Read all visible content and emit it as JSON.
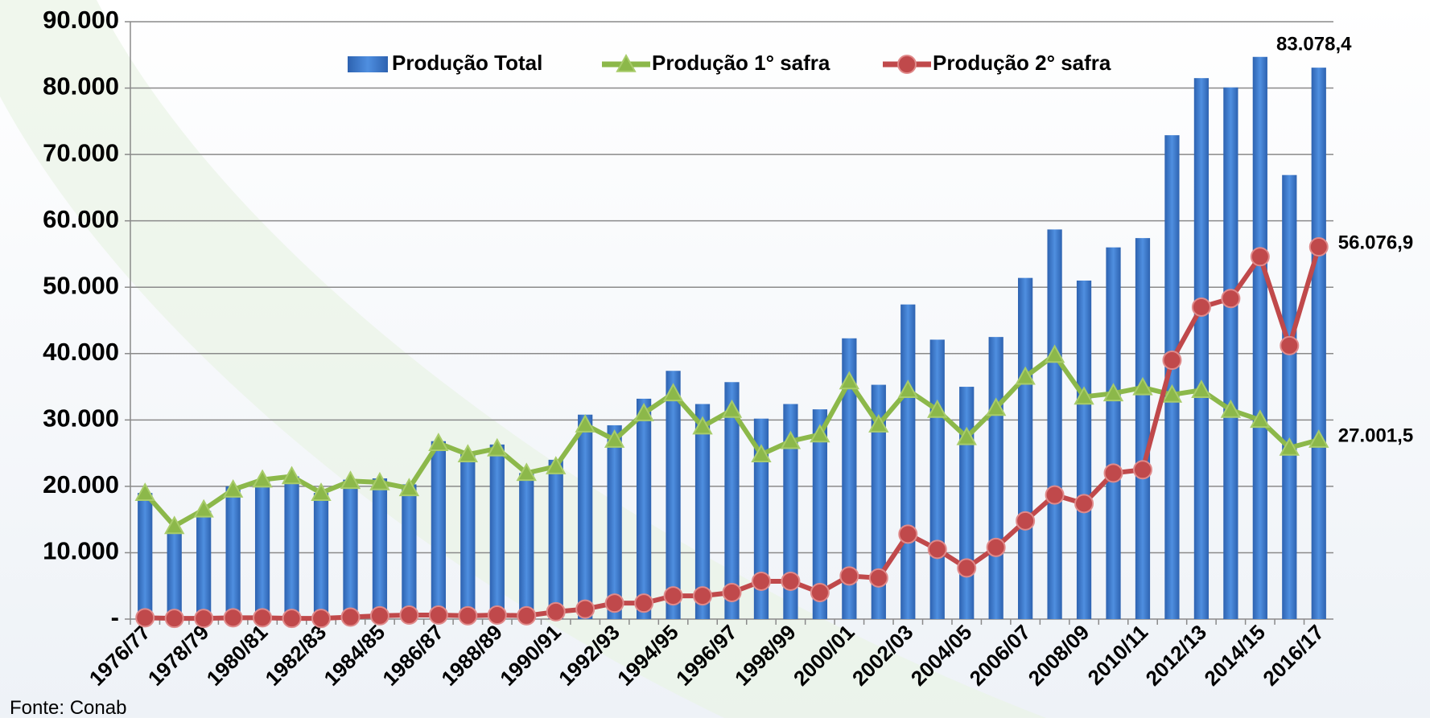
{
  "chart_data": {
    "type": "bar",
    "note": "Fonte: Conab",
    "categories": [
      "1976/77",
      null,
      "1978/79",
      null,
      "1980/81",
      null,
      "1982/83",
      null,
      "1984/85",
      null,
      "1986/87",
      null,
      "1988/89",
      null,
      "1990/91",
      null,
      "1992/93",
      null,
      "1994/95",
      null,
      "1996/97",
      null,
      "1998/99",
      null,
      "2000/01",
      null,
      "2002/03",
      null,
      "2004/05",
      null,
      "2006/07",
      null,
      "2008/09",
      null,
      "2010/11",
      null,
      "2012/13",
      null,
      "2014/15",
      null,
      "2016/17"
    ],
    "series": [
      {
        "name": "Produção Total",
        "type": "bar",
        "color": "#3a7bd0",
        "values": [
          19000,
          13500,
          16300,
          20000,
          21000,
          21500,
          19000,
          21000,
          21200,
          20300,
          26800,
          25000,
          26300,
          22000,
          24000,
          30800,
          29200,
          33200,
          37400,
          32400,
          35700,
          30200,
          32400,
          31600,
          42300,
          35300,
          47400,
          42100,
          35000,
          42500,
          51400,
          58700,
          51000,
          56000,
          57400,
          72900,
          81500,
          80100,
          84700,
          66900,
          83078.4
        ],
        "value_labels": [
          null,
          null,
          null,
          null,
          null,
          null,
          null,
          null,
          null,
          null,
          null,
          null,
          null,
          null,
          null,
          null,
          null,
          null,
          null,
          null,
          null,
          null,
          null,
          null,
          null,
          null,
          null,
          null,
          null,
          null,
          null,
          null,
          null,
          null,
          null,
          null,
          null,
          null,
          null,
          null,
          "83.078,4"
        ]
      },
      {
        "name": "Produção 1° safra",
        "type": "line",
        "marker": "triangle",
        "color": "#8cb84a",
        "values": [
          19000,
          14000,
          16500,
          19500,
          21000,
          21500,
          19000,
          20800,
          20600,
          19700,
          26500,
          24800,
          25700,
          22000,
          23000,
          29300,
          27000,
          31000,
          34000,
          29000,
          31500,
          24800,
          26800,
          27800,
          35800,
          29300,
          34500,
          31500,
          27400,
          31800,
          36500,
          39800,
          33500,
          34000,
          34900,
          33800,
          34500,
          31500,
          30000,
          25800,
          27001.5
        ],
        "value_labels": [
          null,
          null,
          null,
          null,
          null,
          null,
          null,
          null,
          null,
          null,
          null,
          null,
          null,
          null,
          null,
          null,
          null,
          null,
          null,
          null,
          null,
          null,
          null,
          null,
          null,
          null,
          null,
          null,
          null,
          null,
          null,
          null,
          null,
          null,
          null,
          null,
          null,
          null,
          null,
          null,
          "27.001,5"
        ]
      },
      {
        "name": "Produção 2° safra",
        "type": "line",
        "marker": "circle",
        "color": "#c0494b",
        "values": [
          200,
          100,
          100,
          200,
          200,
          100,
          100,
          300,
          500,
          600,
          600,
          500,
          600,
          500,
          1100,
          1500,
          2400,
          2400,
          3500,
          3500,
          4000,
          5700,
          5700,
          4000,
          6500,
          6200,
          12800,
          10500,
          7700,
          10800,
          14800,
          18700,
          17400,
          22000,
          22500,
          39000,
          47000,
          48300,
          54600,
          41200,
          56076.9
        ],
        "value_labels": [
          null,
          null,
          null,
          null,
          null,
          null,
          null,
          null,
          null,
          null,
          null,
          null,
          null,
          null,
          null,
          null,
          null,
          null,
          null,
          null,
          null,
          null,
          null,
          null,
          null,
          null,
          null,
          null,
          null,
          null,
          null,
          null,
          null,
          null,
          null,
          null,
          null,
          null,
          null,
          null,
          "56.076,9"
        ]
      }
    ],
    "ylim": [
      0,
      90000
    ],
    "yticks": [
      {
        "value": 0,
        "label": "-"
      },
      {
        "value": 10000,
        "label": "10.000"
      },
      {
        "value": 20000,
        "label": "20.000"
      },
      {
        "value": 30000,
        "label": "30.000"
      },
      {
        "value": 40000,
        "label": "40.000"
      },
      {
        "value": 50000,
        "label": "50.000"
      },
      {
        "value": 60000,
        "label": "60.000"
      },
      {
        "value": 70000,
        "label": "70.000"
      },
      {
        "value": 80000,
        "label": "80.000"
      },
      {
        "value": 90000,
        "label": "90.000"
      }
    ],
    "grid": true,
    "legend": "top"
  }
}
